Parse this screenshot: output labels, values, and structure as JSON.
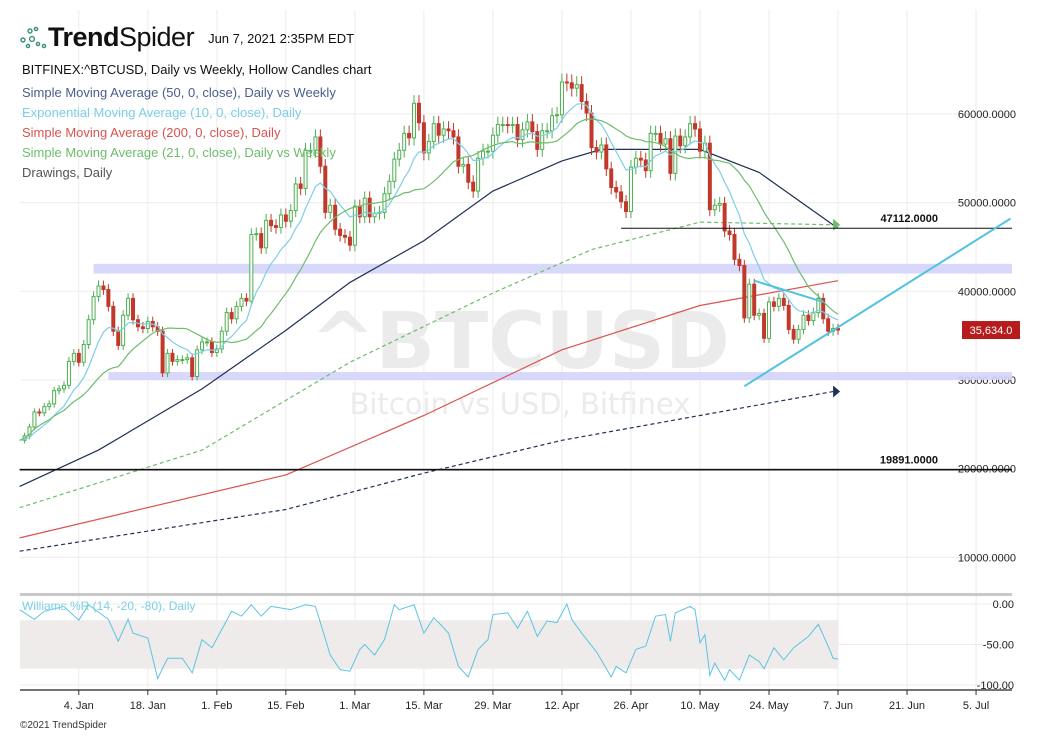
{
  "header": {
    "brand_bold": "Trend",
    "brand_light": "Spider",
    "timestamp": "Jun 7, 2021 2:35PM EDT"
  },
  "legend": {
    "title": "BITFINEX:^BTCUSD, Daily vs Weekly, Hollow Candles chart",
    "items": [
      {
        "label": "Simple Moving Average (50, 0, close), Daily vs Weekly",
        "color": "#4a5d8c"
      },
      {
        "label": "Exponential Moving Average (10, 0, close), Daily",
        "color": "#7ccfe6"
      },
      {
        "label": "Simple Moving Average (200, 0, close), Daily",
        "color": "#d9534f"
      },
      {
        "label": "Simple Moving Average (21, 0, close), Daily vs Weekly",
        "color": "#6cbd6a"
      },
      {
        "label": "Drawings, Daily",
        "color": "#555555"
      }
    ]
  },
  "watermark": {
    "symbol": "^BTCUSD",
    "name": "Bitcoin vs USD, Bitfinex"
  },
  "copyright": "©2021 TrendSpider",
  "chart_data": [
    {
      "type": "candlestick",
      "colors": {
        "up": "#4caf50",
        "down": "#c0392b"
      },
      "start_date": "2020-12-23",
      "closes": [
        23200,
        23700,
        24700,
        26400,
        26300,
        27000,
        27300,
        28800,
        29000,
        29400,
        32100,
        33000,
        32000,
        34000,
        36800,
        39400,
        40600,
        40200,
        38300,
        35500,
        33900,
        37300,
        39200,
        36800,
        36000,
        35800,
        36600,
        36000,
        35500,
        30800,
        33000,
        32100,
        32300,
        32300,
        32500,
        30400,
        33400,
        34300,
        34300,
        33100,
        33500,
        35500,
        37600,
        36900,
        38300,
        39200,
        38900,
        46400,
        46500,
        44900,
        48000,
        47400,
        47200,
        48600,
        47900,
        49100,
        52100,
        51600,
        55900,
        55900,
        57400,
        54100,
        48900,
        49700,
        47000,
        46300,
        46100,
        45200,
        49600,
        48400,
        50500,
        48400,
        48800,
        48900,
        51000,
        52400,
        54900,
        55900,
        57800,
        57300,
        61200,
        59000,
        55600,
        56900,
        58900,
        57600,
        58300,
        58100,
        57400,
        54100,
        54300,
        52300,
        51300,
        55000,
        55800,
        55800,
        57600,
        58800,
        58800,
        58700,
        58800,
        57100,
        58200,
        59100,
        58000,
        56000,
        58100,
        58100,
        59800,
        59900,
        63600,
        63500,
        62900,
        63300,
        61400,
        60100,
        56200,
        55700,
        56500,
        53800,
        51700,
        51200,
        50100,
        49000,
        54000,
        55000,
        54800,
        53600,
        57800,
        57800,
        56600,
        57200,
        53300,
        57500,
        56400,
        57400,
        58900,
        58300,
        55800,
        56700,
        49200,
        49700,
        49900,
        46800,
        46400,
        43600,
        42900,
        37000,
        40800,
        37300,
        37500,
        34700,
        38800,
        38300,
        39200,
        38400,
        35700,
        34600,
        35700,
        37300,
        36700,
        37600,
        39200,
        36900,
        35500,
        35800,
        35634
      ],
      "last_price_label": "35,634.0",
      "last_price_color": "#b71c1c",
      "y_ticks": [
        {
          "value": 60000,
          "label": "60000.0000"
        },
        {
          "value": 50000,
          "label": "50000.0000"
        },
        {
          "value": 40000,
          "label": "40000.0000"
        },
        {
          "value": 30000,
          "label": "30000.0000"
        },
        {
          "value": 20000,
          "label": "20000.0000"
        },
        {
          "value": 10000,
          "label": "10000.0000"
        }
      ],
      "x_ticks": [
        {
          "date": "2021-01-04",
          "label": "4. Jan"
        },
        {
          "date": "2021-01-18",
          "label": "18. Jan"
        },
        {
          "date": "2021-02-01",
          "label": "1. Feb"
        },
        {
          "date": "2021-02-15",
          "label": "15. Feb"
        },
        {
          "date": "2021-03-01",
          "label": "1. Mar"
        },
        {
          "date": "2021-03-15",
          "label": "15. Mar"
        },
        {
          "date": "2021-03-29",
          "label": "29. Mar"
        },
        {
          "date": "2021-04-12",
          "label": "12. Apr"
        },
        {
          "date": "2021-04-26",
          "label": "26. Apr"
        },
        {
          "date": "2021-05-10",
          "label": "10. May"
        },
        {
          "date": "2021-05-24",
          "label": "24. May"
        },
        {
          "date": "2021-06-07",
          "label": "7. Jun"
        },
        {
          "date": "2021-06-21",
          "label": "21. Jun"
        },
        {
          "date": "2021-07-05",
          "label": "5. Jul"
        }
      ],
      "overlays": [
        {
          "name": "SMA 200 Daily",
          "color": "#d9534f",
          "dashed": false,
          "points": [
            [
              "2020-12-23",
              12200
            ],
            [
              "2021-02-15",
              19300
            ],
            [
              "2021-03-15",
              26000
            ],
            [
              "2021-04-12",
              33400
            ],
            [
              "2021-05-10",
              38400
            ],
            [
              "2021-06-07",
              41200
            ]
          ]
        },
        {
          "name": "SMA 50 Daily",
          "color": "#1f2f55",
          "dashed": false,
          "points": [
            [
              "2020-12-23",
              18000
            ],
            [
              "2021-01-08",
              22100
            ],
            [
              "2021-01-29",
              29000
            ],
            [
              "2021-02-15",
              35600
            ],
            [
              "2021-02-28",
              41000
            ],
            [
              "2021-03-15",
              45700
            ],
            [
              "2021-03-29",
              51300
            ],
            [
              "2021-04-12",
              54700
            ],
            [
              "2021-04-20",
              56000
            ],
            [
              "2021-05-10",
              56000
            ],
            [
              "2021-05-22",
              53400
            ],
            [
              "2021-06-07",
              47100
            ]
          ]
        },
        {
          "name": "SMA 21 Weekly",
          "color": "#6cbd6a",
          "dashed": true,
          "arrow": true,
          "points": [
            [
              "2020-12-23",
              15600
            ],
            [
              "2021-01-29",
              22100
            ],
            [
              "2021-02-28",
              32000
            ],
            [
              "2021-03-29",
              39800
            ],
            [
              "2021-04-18",
              44700
            ],
            [
              "2021-05-10",
              47800
            ],
            [
              "2021-06-06",
              47500
            ]
          ]
        },
        {
          "name": "SMA 50 Weekly",
          "color": "#1f2f55",
          "dashed": true,
          "arrow": true,
          "points": [
            [
              "2020-12-23",
              10700
            ],
            [
              "2021-02-15",
              15400
            ],
            [
              "2021-03-15",
              19500
            ],
            [
              "2021-04-12",
              23200
            ],
            [
              "2021-05-10",
              26000
            ],
            [
              "2021-06-06",
              28700
            ]
          ]
        }
      ],
      "computed_lines": [
        {
          "name": "EMA 10",
          "period": 10,
          "kind": "ema",
          "color": "#7ccfe6"
        },
        {
          "name": "SMA 21",
          "period": 21,
          "kind": "sma",
          "color": "#6cbd6a"
        }
      ],
      "drawings": {
        "zones": [
          {
            "from_date": "2021-01-07",
            "low": 42000,
            "high": 43100,
            "color": "#d4d4fb"
          },
          {
            "from_date": "2021-01-10",
            "low": 30000,
            "high": 30900,
            "color": "#d4d4fb"
          }
        ],
        "levels": [
          {
            "value": 47112,
            "label": "47112.0000",
            "from_date": "2021-04-24",
            "color": "#111111"
          },
          {
            "value": 19891,
            "label": "19891.0000",
            "from_date": "2020-12-23",
            "color": "#111111"
          }
        ],
        "trendlines": [
          {
            "from": [
              "2021-05-19",
              29300
            ],
            "to": [
              "2021-07-12",
              48200
            ],
            "color": "#4fc3e0"
          },
          {
            "from": [
              "2021-05-21",
              41200
            ],
            "to": [
              "2021-06-04",
              38800
            ],
            "color": "#4fc3e0"
          }
        ]
      }
    },
    {
      "type": "line",
      "title": "Williams %R (14, -20, -80), Daily",
      "color": "#5bc4e2",
      "band": [
        -80,
        -20
      ],
      "ylim": [
        -100,
        0
      ],
      "y_ticks": [
        {
          "value": 0,
          "label": "0.00"
        },
        {
          "value": -50,
          "label": "-50.00"
        },
        {
          "value": -100,
          "label": "-100.00"
        }
      ],
      "points": [
        [
          "2020-12-23",
          -7
        ],
        [
          "2020-12-26",
          -19
        ],
        [
          "2020-12-28",
          -9
        ],
        [
          "2021-01-01",
          -3
        ],
        [
          "2021-01-04",
          -20
        ],
        [
          "2021-01-06",
          -1
        ],
        [
          "2021-01-10",
          -19
        ],
        [
          "2021-01-12",
          -46
        ],
        [
          "2021-01-14",
          -19
        ],
        [
          "2021-01-15",
          -36
        ],
        [
          "2021-01-18",
          -42
        ],
        [
          "2021-01-20",
          -92
        ],
        [
          "2021-01-22",
          -67
        ],
        [
          "2021-01-25",
          -67
        ],
        [
          "2021-01-27",
          -85
        ],
        [
          "2021-01-29",
          -44
        ],
        [
          "2021-01-31",
          -54
        ],
        [
          "2021-02-04",
          -9
        ],
        [
          "2021-02-06",
          -15
        ],
        [
          "2021-02-08",
          -1
        ],
        [
          "2021-02-10",
          -15
        ],
        [
          "2021-02-12",
          -3
        ],
        [
          "2021-02-16",
          -7
        ],
        [
          "2021-02-19",
          -1
        ],
        [
          "2021-02-21",
          -3
        ],
        [
          "2021-02-24",
          -63
        ],
        [
          "2021-02-26",
          -81
        ],
        [
          "2021-02-28",
          -83
        ],
        [
          "2021-03-02",
          -56
        ],
        [
          "2021-03-03",
          -50
        ],
        [
          "2021-03-05",
          -63
        ],
        [
          "2021-03-07",
          -44
        ],
        [
          "2021-03-09",
          -1
        ],
        [
          "2021-03-10",
          -7
        ],
        [
          "2021-03-13",
          -1
        ],
        [
          "2021-03-15",
          -36
        ],
        [
          "2021-03-17",
          -17
        ],
        [
          "2021-03-18",
          -23
        ],
        [
          "2021-03-20",
          -36
        ],
        [
          "2021-03-22",
          -77
        ],
        [
          "2021-03-24",
          -90
        ],
        [
          "2021-03-26",
          -56
        ],
        [
          "2021-03-28",
          -44
        ],
        [
          "2021-03-29",
          -13
        ],
        [
          "2021-04-01",
          -11
        ],
        [
          "2021-04-03",
          -30
        ],
        [
          "2021-04-05",
          -9
        ],
        [
          "2021-04-07",
          -40
        ],
        [
          "2021-04-09",
          -21
        ],
        [
          "2021-04-11",
          -23
        ],
        [
          "2021-04-13",
          0
        ],
        [
          "2021-04-14",
          -19
        ],
        [
          "2021-04-16",
          -36
        ],
        [
          "2021-04-19",
          -59
        ],
        [
          "2021-04-22",
          -90
        ],
        [
          "2021-04-23",
          -77
        ],
        [
          "2021-04-25",
          -85
        ],
        [
          "2021-04-27",
          -56
        ],
        [
          "2021-04-29",
          -52
        ],
        [
          "2021-05-01",
          -15
        ],
        [
          "2021-05-03",
          -13
        ],
        [
          "2021-05-04",
          -46
        ],
        [
          "2021-05-05",
          -11
        ],
        [
          "2021-05-08",
          -3
        ],
        [
          "2021-05-09",
          -7
        ],
        [
          "2021-05-10",
          -48
        ],
        [
          "2021-05-11",
          -38
        ],
        [
          "2021-05-12",
          -88
        ],
        [
          "2021-05-13",
          -73
        ],
        [
          "2021-05-15",
          -94
        ],
        [
          "2021-05-16",
          -81
        ],
        [
          "2021-05-18",
          -94
        ],
        [
          "2021-05-20",
          -63
        ],
        [
          "2021-05-22",
          -71
        ],
        [
          "2021-05-23",
          -80
        ],
        [
          "2021-05-25",
          -54
        ],
        [
          "2021-05-27",
          -69
        ],
        [
          "2021-05-29",
          -54
        ],
        [
          "2021-06-01",
          -40
        ],
        [
          "2021-06-03",
          -25
        ],
        [
          "2021-06-05",
          -52
        ],
        [
          "2021-06-06",
          -67
        ],
        [
          "2021-06-07",
          -68
        ]
      ]
    }
  ]
}
